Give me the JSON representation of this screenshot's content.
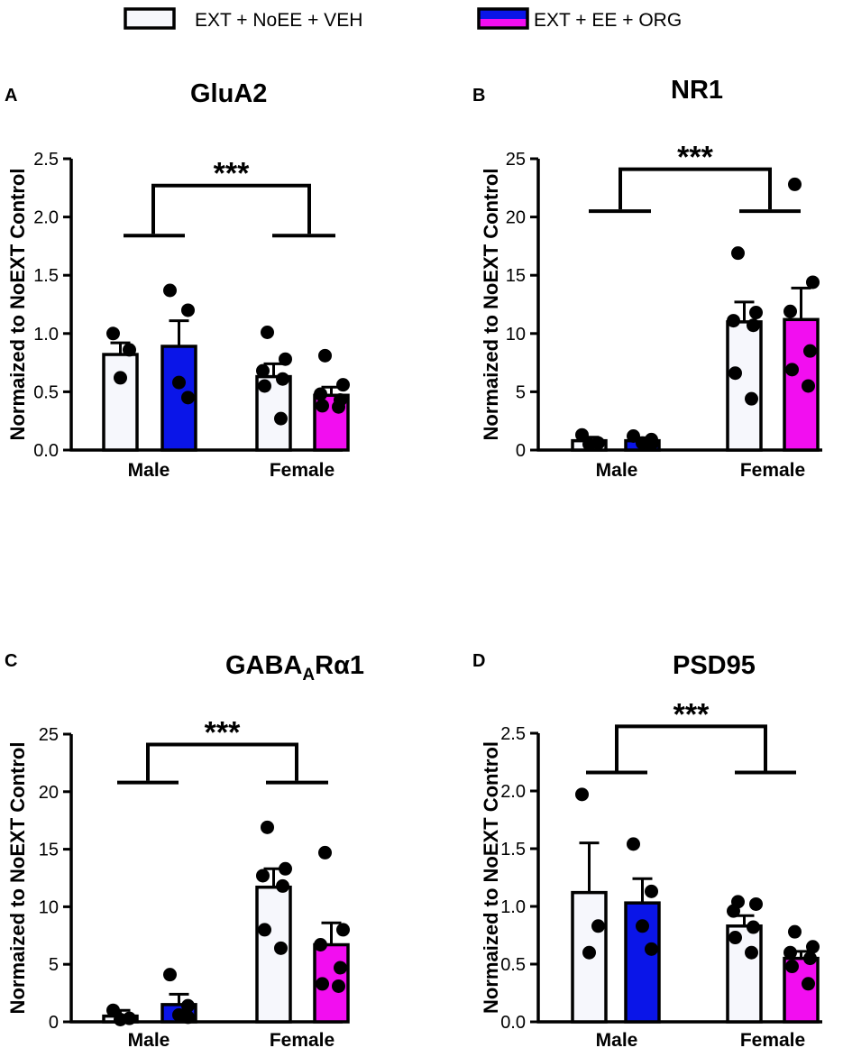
{
  "legend": [
    {
      "label": "EXT + NoEE + VEH",
      "fill": "#f6f7fc"
    },
    {
      "label": "EXT + EE + ORG",
      "fill_top": "#0a15e8",
      "fill_bottom": "#f20ef0"
    }
  ],
  "colors": {
    "veh": "#f6f7fc",
    "male_org": "#0a15e8",
    "female_org": "#f20ef0",
    "ink": "#000000"
  },
  "chart_data": [
    {
      "panel": "A",
      "type": "bar",
      "title": "GluA2",
      "title_sub": "",
      "ylabel": "Normaized to NoEXT Control",
      "categories": [
        "Male",
        "Female"
      ],
      "ylim": [
        0,
        2.5
      ],
      "yticks": [
        "0.0",
        "0.5",
        "1.0",
        "1.5",
        "2.0",
        "2.5"
      ],
      "ytick_values": [
        0,
        0.5,
        1.0,
        1.5,
        2.0,
        2.5
      ],
      "significance": "***",
      "group_bar_y": 1.84,
      "bracket_y": 2.27,
      "series": [
        {
          "name": "EXT + NoEE + VEH",
          "values": [
            0.82,
            0.63
          ],
          "sem": [
            0.1,
            0.11
          ],
          "points": [
            [
              1.0,
              0.86,
              0.62
            ],
            [
              1.01,
              0.78,
              0.68,
              0.61,
              0.55,
              0.27
            ]
          ]
        },
        {
          "name": "EXT + EE + ORG",
          "values": [
            0.89,
            0.47
          ],
          "sem": [
            0.22,
            0.07
          ],
          "points": [
            [
              1.37,
              1.2,
              0.58,
              0.45
            ],
            [
              0.81,
              0.56,
              0.48,
              0.43,
              0.38,
              0.37
            ]
          ]
        }
      ]
    },
    {
      "panel": "B",
      "type": "bar",
      "title": "NR1",
      "title_sub": "",
      "ylabel": "Normaized to NoEXT Control",
      "categories": [
        "Male",
        "Female"
      ],
      "ylim": [
        0,
        25
      ],
      "yticks": [
        "0",
        "5",
        "10",
        "15",
        "20",
        "25"
      ],
      "ytick_values": [
        0,
        5,
        10,
        15,
        20,
        25
      ],
      "significance": "***",
      "group_bar_y": 20.5,
      "bracket_y": 24.1,
      "series": [
        {
          "name": "EXT + NoEE + VEH",
          "values": [
            0.8,
            11.0
          ],
          "sem": [
            0.3,
            1.7
          ],
          "points": [
            [
              1.3,
              0.6,
              0.5
            ],
            [
              16.9,
              11.8,
              11.1,
              10.7,
              6.6,
              4.4
            ]
          ]
        },
        {
          "name": "EXT + EE + ORG",
          "values": [
            0.8,
            11.2
          ],
          "sem": [
            0.25,
            2.7
          ],
          "points": [
            [
              1.2,
              0.9,
              0.6,
              0.5
            ],
            [
              22.8,
              14.4,
              11.9,
              8.5,
              6.9,
              5.5
            ]
          ]
        }
      ]
    },
    {
      "panel": "C",
      "type": "bar",
      "title": "GABA",
      "title_sub": "A",
      "title_tail": "Rα1",
      "ylabel": "Normaized to NoEXT Control",
      "categories": [
        "Male",
        "Female"
      ],
      "ylim": [
        0,
        25
      ],
      "yticks": [
        "0",
        "5",
        "10",
        "15",
        "20",
        "25"
      ],
      "ytick_values": [
        0,
        5,
        10,
        15,
        20,
        25
      ],
      "significance": "***",
      "group_bar_y": 20.8,
      "bracket_y": 24.1,
      "series": [
        {
          "name": "EXT + NoEE + VEH",
          "values": [
            0.5,
            11.7
          ],
          "sem": [
            0.5,
            1.6
          ],
          "points": [
            [
              1.0,
              0.3,
              0.2
            ],
            [
              16.9,
              13.3,
              12.7,
              11.8,
              8.0,
              6.4
            ]
          ]
        },
        {
          "name": "EXT + EE + ORG",
          "values": [
            1.5,
            6.7
          ],
          "sem": [
            0.9,
            1.9
          ],
          "points": [
            [
              4.1,
              1.4,
              0.6,
              0.4
            ],
            [
              14.7,
              8.0,
              6.7,
              4.7,
              3.3,
              3.1
            ]
          ]
        }
      ]
    },
    {
      "panel": "D",
      "type": "bar",
      "title": "PSD95",
      "title_sub": "",
      "ylabel": "Normaized to NoEXT Control",
      "categories": [
        "Male",
        "Female"
      ],
      "ylim": [
        0,
        2.5
      ],
      "yticks": [
        "0.0",
        "0.5",
        "1.0",
        "1.5",
        "2.0",
        "2.5"
      ],
      "ytick_values": [
        0,
        0.5,
        1.0,
        1.5,
        2.0,
        2.5
      ],
      "significance": "***",
      "group_bar_y": 2.16,
      "bracket_y": 2.56,
      "series": [
        {
          "name": "EXT + NoEE + VEH",
          "values": [
            1.12,
            0.83
          ],
          "sem": [
            0.43,
            0.09
          ],
          "points": [
            [
              1.97,
              0.83,
              0.6
            ],
            [
              1.04,
              1.02,
              0.96,
              0.82,
              0.73,
              0.6
            ]
          ]
        },
        {
          "name": "EXT + EE + ORG",
          "values": [
            1.03,
            0.55
          ],
          "sem": [
            0.21,
            0.06
          ],
          "points": [
            [
              1.54,
              1.13,
              0.83,
              0.63
            ],
            [
              0.78,
              0.65,
              0.6,
              0.55,
              0.48,
              0.33
            ]
          ]
        }
      ]
    }
  ]
}
